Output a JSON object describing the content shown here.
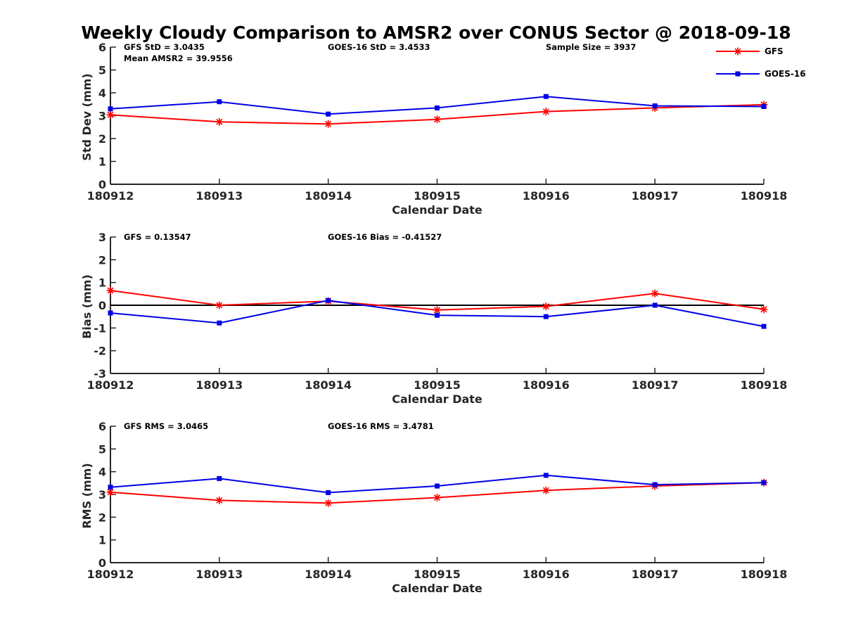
{
  "title": "Weekly Cloudy Comparison to AMSR2 over CONUS Sector @ 2018-09-18",
  "legend": {
    "position": "top-right",
    "items": [
      {
        "label": "GFS",
        "color": "#ff0000",
        "marker": "asterisk"
      },
      {
        "label": "GOES-16",
        "color": "#0000e6",
        "marker": "square"
      }
    ]
  },
  "chart_data": [
    {
      "type": "line",
      "title": "",
      "xlabel": "Calendar Date",
      "ylabel": "Std Dev (mm)",
      "x": [
        "180912",
        "180913",
        "180914",
        "180915",
        "180916",
        "180917",
        "180918"
      ],
      "ylim": [
        0,
        6
      ],
      "yticks": [
        "0",
        "1",
        "2",
        "3",
        "4",
        "5",
        "6"
      ],
      "grid": false,
      "zero_line": false,
      "series": [
        {
          "name": "GFS",
          "color": "#ff0000",
          "values": [
            3.04,
            2.73,
            2.64,
            2.84,
            3.18,
            3.34,
            3.48
          ]
        },
        {
          "name": "GOES-16",
          "color": "#0000e6",
          "values": [
            3.3,
            3.61,
            3.07,
            3.34,
            3.84,
            3.43,
            3.4
          ]
        }
      ],
      "annotations": [
        {
          "text": "GFS StD = 3.0435",
          "row": 0,
          "col": 0
        },
        {
          "text": "Mean AMSR2 = 39.9556",
          "row": 1,
          "col": 0
        },
        {
          "text": "GOES-16 StD = 3.4533",
          "row": 0,
          "col": 1
        },
        {
          "text": "Sample Size = 3937",
          "row": 0,
          "col": 2
        }
      ]
    },
    {
      "type": "line",
      "title": "",
      "xlabel": "Calendar Date",
      "ylabel": "Bias (mm)",
      "x": [
        "180912",
        "180913",
        "180914",
        "180915",
        "180916",
        "180917",
        "180918"
      ],
      "ylim": [
        -3,
        3
      ],
      "yticks": [
        "-3",
        "-2",
        "-1",
        "0",
        "1",
        "2",
        "3"
      ],
      "grid": false,
      "zero_line": true,
      "series": [
        {
          "name": "GFS",
          "color": "#ff0000",
          "values": [
            0.65,
            0.0,
            0.18,
            -0.21,
            -0.05,
            0.52,
            -0.18
          ]
        },
        {
          "name": "GOES-16",
          "color": "#0000e6",
          "values": [
            -0.34,
            -0.78,
            0.21,
            -0.44,
            -0.5,
            0.0,
            -0.93
          ]
        }
      ],
      "annotations": [
        {
          "text": "GFS = 0.13547",
          "row": 0,
          "col": 0
        },
        {
          "text": "GOES-16 Bias  = -0.41527",
          "row": 0,
          "col": 1
        }
      ]
    },
    {
      "type": "line",
      "title": "",
      "xlabel": "Calendar Date",
      "ylabel": "RMS (mm)",
      "x": [
        "180912",
        "180913",
        "180914",
        "180915",
        "180916",
        "180917",
        "180918"
      ],
      "ylim": [
        0,
        6
      ],
      "yticks": [
        "0",
        "1",
        "2",
        "3",
        "4",
        "5",
        "6"
      ],
      "grid": false,
      "zero_line": false,
      "series": [
        {
          "name": "GFS",
          "color": "#ff0000",
          "values": [
            3.1,
            2.74,
            2.62,
            2.86,
            3.18,
            3.37,
            3.52
          ]
        },
        {
          "name": "GOES-16",
          "color": "#0000e6",
          "values": [
            3.32,
            3.7,
            3.08,
            3.37,
            3.84,
            3.43,
            3.52
          ]
        }
      ],
      "annotations": [
        {
          "text": "GFS RMS = 3.0465",
          "row": 0,
          "col": 0
        },
        {
          "text": "GOES-16 RMS = 3.4781",
          "row": 0,
          "col": 1
        }
      ]
    }
  ]
}
